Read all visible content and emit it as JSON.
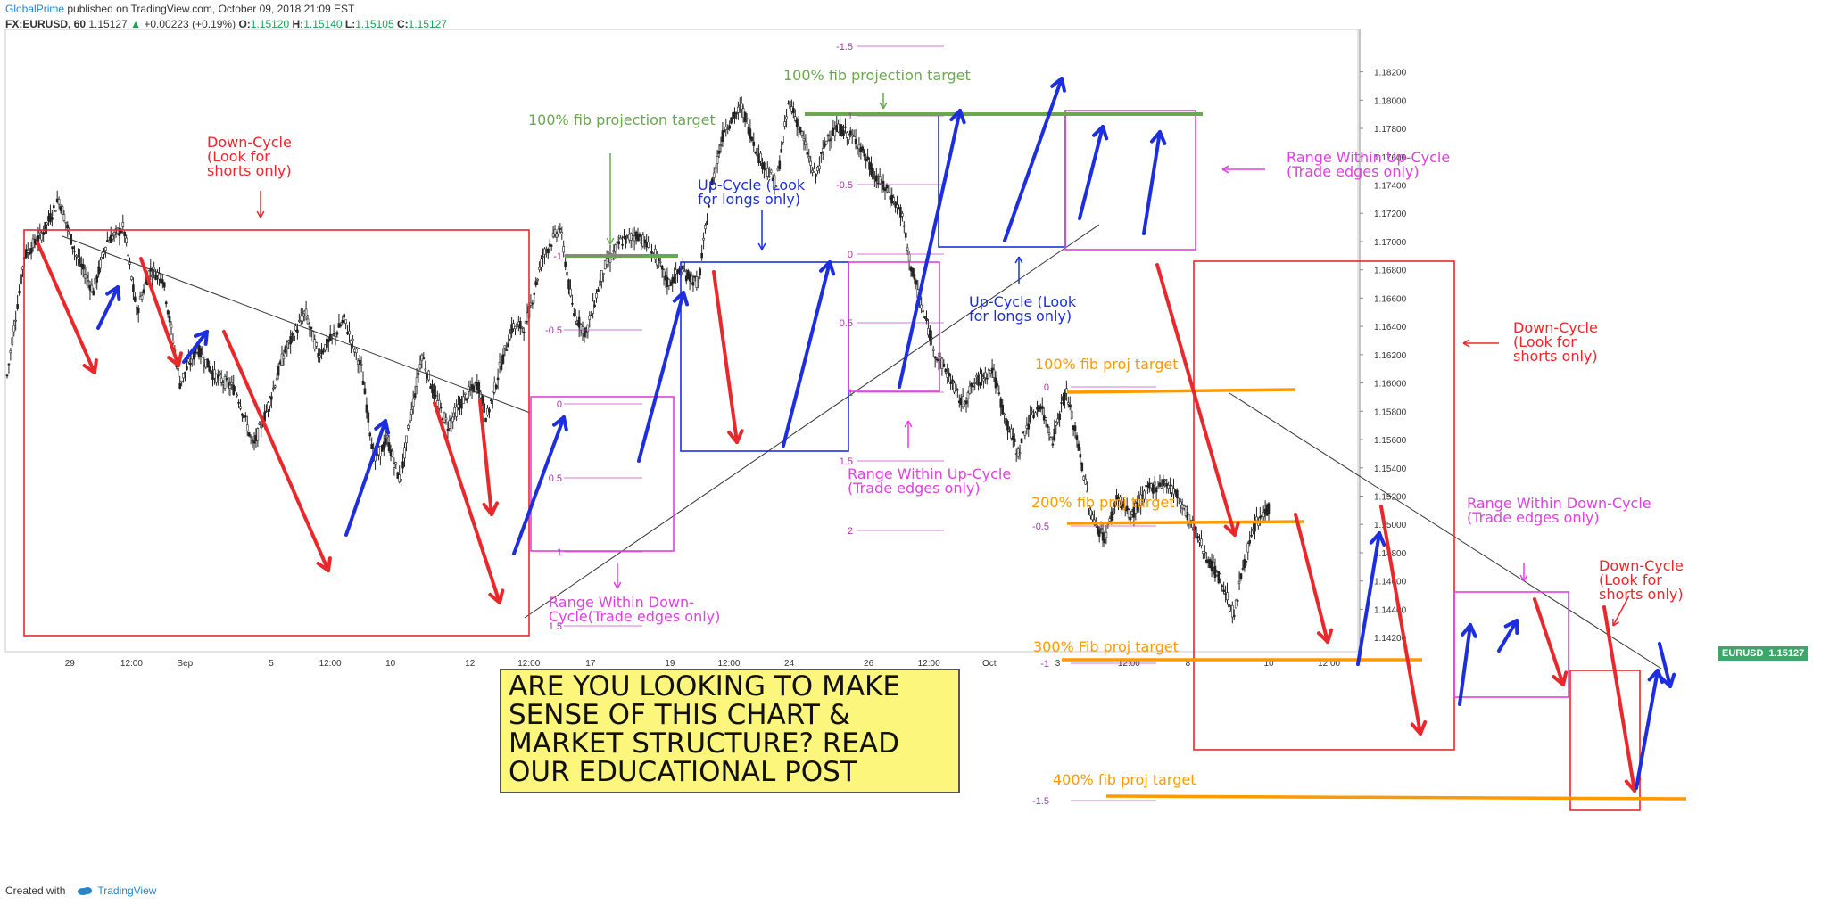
{
  "header": {
    "publisher": "GlobalPrime",
    "published_text": "published on TradingView.com, October 09, 2018 21:09 EST",
    "symbol": "FX:EURUSD, 60",
    "last": "1.15127",
    "change": "+0.00223 (+0.19%)",
    "o_label": "O:",
    "o_value": "1.15120",
    "h_label": "H:",
    "h_value": "1.15140",
    "l_label": "L:",
    "l_value": "1.15105",
    "c_label": "C:",
    "c_value": "1.15127"
  },
  "footer": {
    "created_with": "Created with",
    "brand": "TradingView"
  },
  "price_tag": {
    "symbol": "EURUSD",
    "value": "1.15127"
  },
  "cta_text": "ARE YOU LOOKING TO MAKE SENSE OF THIS CHART & MARKET STRUCTURE? READ OUR EDUCATIONAL POST",
  "chart_data": {
    "type": "line",
    "title": "",
    "symbol": "EURUSD",
    "timeframe": "60",
    "ylim": [
      1.141,
      1.185
    ],
    "y_ticks": [
      "1.14200",
      "1.14400",
      "1.14600",
      "1.14800",
      "1.15000",
      "1.15200",
      "1.15400",
      "1.15600",
      "1.15800",
      "1.16000",
      "1.16200",
      "1.16400",
      "1.16600",
      "1.16800",
      "1.17000",
      "1.17200",
      "1.17400",
      "1.17600",
      "1.17800",
      "1.18000",
      "1.18200"
    ],
    "x_ticks": [
      "29",
      "12:00",
      "Sep",
      "5",
      "12:00",
      "10",
      "12",
      "12:00",
      "17",
      "19",
      "12:00",
      "24",
      "26",
      "12:00",
      "Oct",
      "3",
      "12:00",
      "8",
      "10",
      "12:00"
    ],
    "grid": true,
    "colors": {
      "down_cycle": "#e8282b",
      "up_cycle": "#1c2ee0",
      "range": "#e040e0",
      "fib_green": "#6aa84f",
      "fib_orange": "#ff9900",
      "candle": "#222222"
    },
    "price_path": [
      [
        0,
        1.1605
      ],
      [
        20,
        1.169
      ],
      [
        40,
        1.1705
      ],
      [
        60,
        1.173
      ],
      [
        80,
        1.169
      ],
      [
        100,
        1.1665
      ],
      [
        115,
        1.17
      ],
      [
        135,
        1.171
      ],
      [
        150,
        1.165
      ],
      [
        165,
        1.168
      ],
      [
        180,
        1.1675
      ],
      [
        200,
        1.16
      ],
      [
        220,
        1.1625
      ],
      [
        240,
        1.1605
      ],
      [
        265,
        1.1595
      ],
      [
        285,
        1.1555
      ],
      [
        300,
        1.158
      ],
      [
        320,
        1.162
      ],
      [
        345,
        1.165
      ],
      [
        360,
        1.162
      ],
      [
        380,
        1.1635
      ],
      [
        390,
        1.1645
      ],
      [
        410,
        1.161
      ],
      [
        425,
        1.1545
      ],
      [
        440,
        1.156
      ],
      [
        455,
        1.153
      ],
      [
        465,
        1.157
      ],
      [
        480,
        1.162
      ],
      [
        495,
        1.159
      ],
      [
        510,
        1.157
      ],
      [
        530,
        1.159
      ],
      [
        545,
        1.16
      ],
      [
        555,
        1.1575
      ],
      [
        570,
        1.161
      ],
      [
        585,
        1.164
      ],
      [
        600,
        1.164
      ],
      [
        620,
        1.169
      ],
      [
        640,
        1.171
      ],
      [
        655,
        1.165
      ],
      [
        670,
        1.1635
      ],
      [
        690,
        1.168
      ],
      [
        710,
        1.17
      ],
      [
        730,
        1.1705
      ],
      [
        750,
        1.169
      ],
      [
        765,
        1.167
      ],
      [
        780,
        1.168
      ],
      [
        800,
        1.167
      ],
      [
        815,
        1.174
      ],
      [
        830,
        1.178
      ],
      [
        850,
        1.1795
      ],
      [
        870,
        1.176
      ],
      [
        890,
        1.174
      ],
      [
        905,
        1.18
      ],
      [
        920,
        1.1775
      ],
      [
        935,
        1.1745
      ],
      [
        950,
        1.1775
      ],
      [
        965,
        1.178
      ],
      [
        985,
        1.177
      ],
      [
        1005,
        1.1745
      ],
      [
        1020,
        1.1735
      ],
      [
        1035,
        1.172
      ],
      [
        1045,
        1.1685
      ],
      [
        1060,
        1.165
      ],
      [
        1075,
        1.162
      ],
      [
        1090,
        1.1605
      ],
      [
        1105,
        1.1585
      ],
      [
        1120,
        1.16
      ],
      [
        1140,
        1.161
      ],
      [
        1155,
        1.1575
      ],
      [
        1170,
        1.155
      ],
      [
        1180,
        1.157
      ],
      [
        1195,
        1.1585
      ],
      [
        1210,
        1.156
      ],
      [
        1225,
        1.1595
      ],
      [
        1240,
        1.1555
      ],
      [
        1255,
        1.1505
      ],
      [
        1270,
        1.149
      ],
      [
        1285,
        1.152
      ],
      [
        1300,
        1.1505
      ],
      [
        1320,
        1.1525
      ],
      [
        1340,
        1.153
      ],
      [
        1355,
        1.152
      ],
      [
        1375,
        1.1495
      ],
      [
        1390,
        1.1475
      ],
      [
        1405,
        1.146
      ],
      [
        1420,
        1.1435
      ],
      [
        1430,
        1.147
      ],
      [
        1445,
        1.15
      ],
      [
        1460,
        1.1512
      ]
    ],
    "annotations": [
      {
        "text": "Down-Cycle\n(Look for\nshorts only)",
        "color": "down_cycle"
      },
      {
        "text": "100% fib projection target",
        "color": "fib_green"
      },
      {
        "text": "Up-Cycle (Look\nfor longs only)",
        "color": "up_cycle"
      },
      {
        "text": "100% fib projection target",
        "color": "fib_green"
      },
      {
        "text": "Range Within Up-Cycle\n(Trade edges only)",
        "color": "range"
      },
      {
        "text": "Up-Cycle (Look\nfor longs only)",
        "color": "up_cycle"
      },
      {
        "text": "Range Within Up-Cycle\n(Trade edges only)",
        "color": "range"
      },
      {
        "text": "Down-Cycle\n(Look for\nshorts only)",
        "color": "down_cycle"
      },
      {
        "text": "100% fib proj target",
        "color": "fib_orange"
      },
      {
        "text": "200% fib proj target",
        "color": "fib_orange"
      },
      {
        "text": "300% Fib proj target",
        "color": "fib_orange"
      },
      {
        "text": "400% fib proj target",
        "color": "fib_orange"
      },
      {
        "text": "Range Within Down-Cycle\n(Trade edges only)",
        "color": "range"
      },
      {
        "text": "Down-Cycle\n(Look for\nshorts only)",
        "color": "down_cycle"
      },
      {
        "text": "Range Within Down-\nCycle(Trade edges only)",
        "color": "range"
      }
    ],
    "fib_levels": [
      "-1.5",
      "-1",
      "-0.5",
      "0",
      "0.5",
      "1",
      "1.5",
      "2"
    ]
  }
}
